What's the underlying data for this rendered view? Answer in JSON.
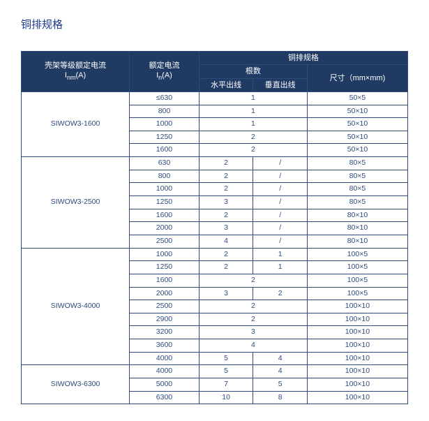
{
  "title": "铜排规格",
  "headers": {
    "frame": "壳架等级额定电流",
    "frame_unit_prefix": "I",
    "frame_unit_sub": "nm",
    "frame_unit_suffix": "(A)",
    "rated": "额定电流",
    "rated_unit_prefix": "I",
    "rated_unit_sub": "n",
    "rated_unit_suffix": "(A)",
    "spec": "铜排规格",
    "count": "根数",
    "h_out": "水平出线",
    "v_out": "垂直出线",
    "size": "尺寸（mm×mm)"
  },
  "groups": [
    {
      "frame": "SIWOW3-1600",
      "rows": [
        {
          "rated": "≤630",
          "h": "1",
          "v": null,
          "merge_hv": true,
          "size": "50×5"
        },
        {
          "rated": "800",
          "h": "1",
          "v": null,
          "merge_hv": true,
          "size": "50×10"
        },
        {
          "rated": "1000",
          "h": "1",
          "v": null,
          "merge_hv": true,
          "size": "50×10"
        },
        {
          "rated": "1250",
          "h": "2",
          "v": null,
          "merge_hv": true,
          "size": "50×10"
        },
        {
          "rated": "1600",
          "h": "2",
          "v": null,
          "merge_hv": true,
          "size": "50×10"
        }
      ]
    },
    {
      "frame": "SIWOW3-2500",
      "rows": [
        {
          "rated": "630",
          "h": "2",
          "v": "/",
          "size": "80×5"
        },
        {
          "rated": "800",
          "h": "2",
          "v": "/",
          "size": "80×5"
        },
        {
          "rated": "1000",
          "h": "2",
          "v": "/",
          "size": "80×5"
        },
        {
          "rated": "1250",
          "h": "3",
          "v": "/",
          "size": "80×5"
        },
        {
          "rated": "1600",
          "h": "2",
          "v": "/",
          "size": "80×10"
        },
        {
          "rated": "2000",
          "h": "3",
          "v": "/",
          "size": "80×10"
        },
        {
          "rated": "2500",
          "h": "4",
          "v": "/",
          "size": "80×10"
        }
      ]
    },
    {
      "frame": "SIWOW3-4000",
      "rows": [
        {
          "rated": "1000",
          "h": "2",
          "v": "1",
          "size": "100×5"
        },
        {
          "rated": "1250",
          "h": "2",
          "v": "1",
          "size": "100×5"
        },
        {
          "rated": "1600",
          "h": "2",
          "v": null,
          "merge_hv": true,
          "size": "100×5"
        },
        {
          "rated": "2000",
          "h": "3",
          "v": "2",
          "size": "100×5"
        },
        {
          "rated": "2500",
          "h": "2",
          "v": null,
          "merge_hv": true,
          "size": "100×10"
        },
        {
          "rated": "2900",
          "h": "2",
          "v": null,
          "merge_hv": true,
          "size": "100×10"
        },
        {
          "rated": "3200",
          "h": "3",
          "v": null,
          "merge_hv": true,
          "size": "100×10"
        },
        {
          "rated": "3600",
          "h": "4",
          "v": null,
          "merge_hv": true,
          "size": "100×10"
        },
        {
          "rated": "4000",
          "h": "5",
          "v": "4",
          "size": "100×10"
        }
      ]
    },
    {
      "frame": "SIWOW3-6300",
      "rows": [
        {
          "rated": "4000",
          "h": "5",
          "v": "4",
          "size": "100×10"
        },
        {
          "rated": "5000",
          "h": "7",
          "v": "5",
          "size": "100×10"
        },
        {
          "rated": "6300",
          "h": "10",
          "v": "8",
          "size": "100×10"
        }
      ]
    }
  ]
}
